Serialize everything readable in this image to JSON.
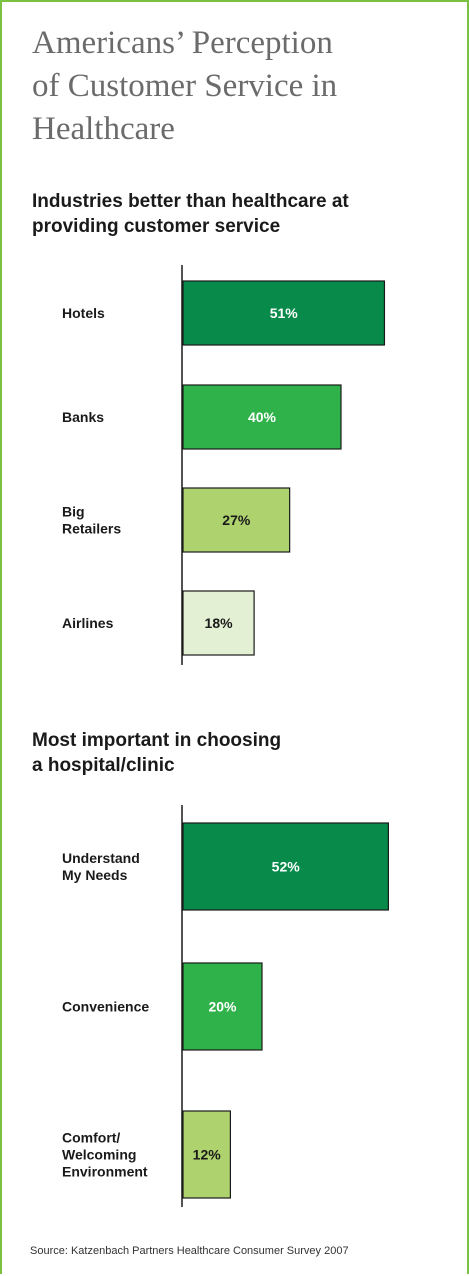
{
  "title_lines": [
    "Americans’ Perception",
    "of Customer Service in",
    "Healthcare"
  ],
  "colors": {
    "border": "#7cc242",
    "dark_green": "#078a4a",
    "mid_green": "#2fb24a",
    "light_green": "#aed36e",
    "pale_green": "#e3f0d3"
  },
  "chart_data": [
    {
      "type": "bar",
      "orientation": "horizontal",
      "title_lines": [
        "Industries better than healthcare at",
        "providing customer service"
      ],
      "categories": [
        [
          "Hotels"
        ],
        [
          "Banks"
        ],
        [
          "Big",
          "Retailers"
        ],
        [
          "Airlines"
        ]
      ],
      "values": [
        51,
        40,
        27,
        18
      ],
      "value_labels": [
        "51%",
        "40%",
        "27%",
        "18%"
      ],
      "bar_colors": [
        "#078a4a",
        "#2fb24a",
        "#aed36e",
        "#e3f0d3"
      ],
      "label_colors": [
        "#ffffff",
        "#ffffff",
        "#1a1a1a",
        "#1a1a1a"
      ],
      "xlim": [
        0,
        100
      ]
    },
    {
      "type": "bar",
      "orientation": "horizontal",
      "title_lines": [
        "Most important in choosing",
        "a hospital/clinic"
      ],
      "categories": [
        [
          "Understand",
          "My Needs"
        ],
        [
          "Convenience"
        ],
        [
          "Comfort/",
          "Welcoming",
          "Environment"
        ]
      ],
      "values": [
        52,
        20,
        12
      ],
      "value_labels": [
        "52%",
        "20%",
        "12%"
      ],
      "bar_colors": [
        "#078a4a",
        "#2fb24a",
        "#aed36e"
      ],
      "label_colors": [
        "#ffffff",
        "#ffffff",
        "#1a1a1a"
      ],
      "xlim": [
        0,
        100
      ]
    }
  ],
  "source": "Source:  Katzenbach Partners Healthcare Consumer Survey 2007"
}
